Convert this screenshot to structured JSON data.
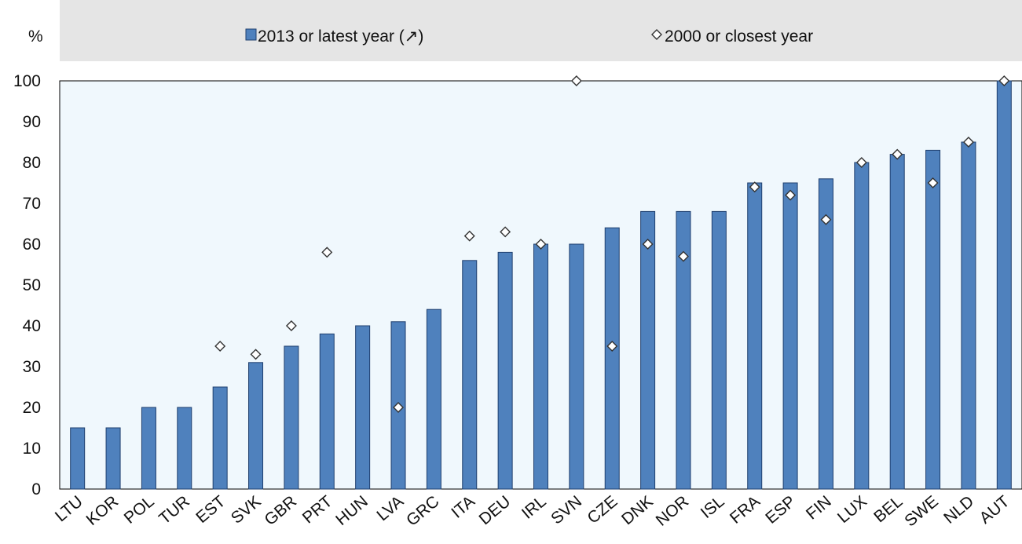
{
  "chart_data": {
    "type": "bar",
    "ylabel": "%",
    "ylim": [
      0,
      100
    ],
    "yticks": [
      0,
      10,
      20,
      30,
      40,
      50,
      60,
      70,
      80,
      90,
      100
    ],
    "grid": false,
    "legend_position": "top",
    "categories": [
      "LTU",
      "KOR",
      "POL",
      "TUR",
      "EST",
      "SVK",
      "GBR",
      "PRT",
      "HUN",
      "LVA",
      "GRC",
      "ITA",
      "DEU",
      "IRL",
      "SVN",
      "CZE",
      "DNK",
      "NOR",
      "ISL",
      "FRA",
      "ESP",
      "FIN",
      "LUX",
      "BEL",
      "SWE",
      "NLD",
      "AUT"
    ],
    "series": [
      {
        "name": "2013 or latest year (↗)",
        "kind": "bar",
        "color": "#4f81bd",
        "values": [
          15,
          15,
          20,
          20,
          25,
          31,
          35,
          38,
          40,
          41,
          44,
          56,
          58,
          60,
          60,
          64,
          68,
          68,
          68,
          75,
          75,
          76,
          80,
          82,
          83,
          85,
          100
        ]
      },
      {
        "name": "2000 or closest year",
        "kind": "marker",
        "marker": "diamond",
        "color": "#ffffff",
        "values": [
          null,
          null,
          null,
          null,
          35,
          33,
          40,
          58,
          null,
          20,
          null,
          62,
          63,
          60,
          100,
          35,
          60,
          57,
          null,
          74,
          72,
          66,
          80,
          82,
          75,
          85,
          100
        ]
      }
    ]
  }
}
